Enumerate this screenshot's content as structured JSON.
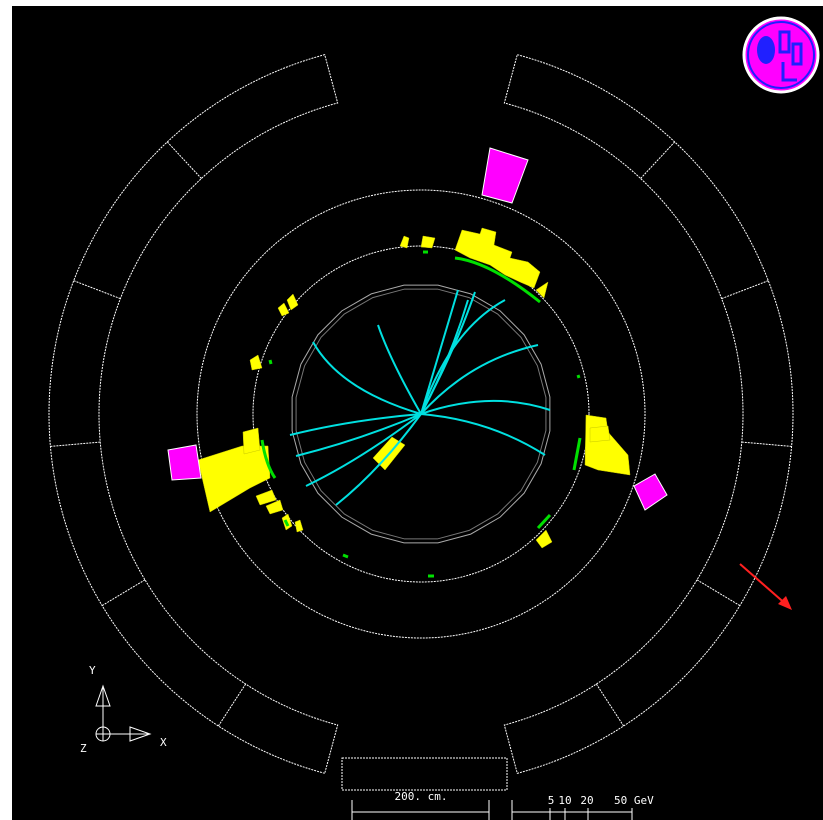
{
  "axes": {
    "y": "Y",
    "x": "X",
    "z": "Z"
  },
  "scale": {
    "length": "200. cm.",
    "energy_ticks": [
      "5",
      "10",
      "20",
      "50 GeV"
    ]
  }
}
